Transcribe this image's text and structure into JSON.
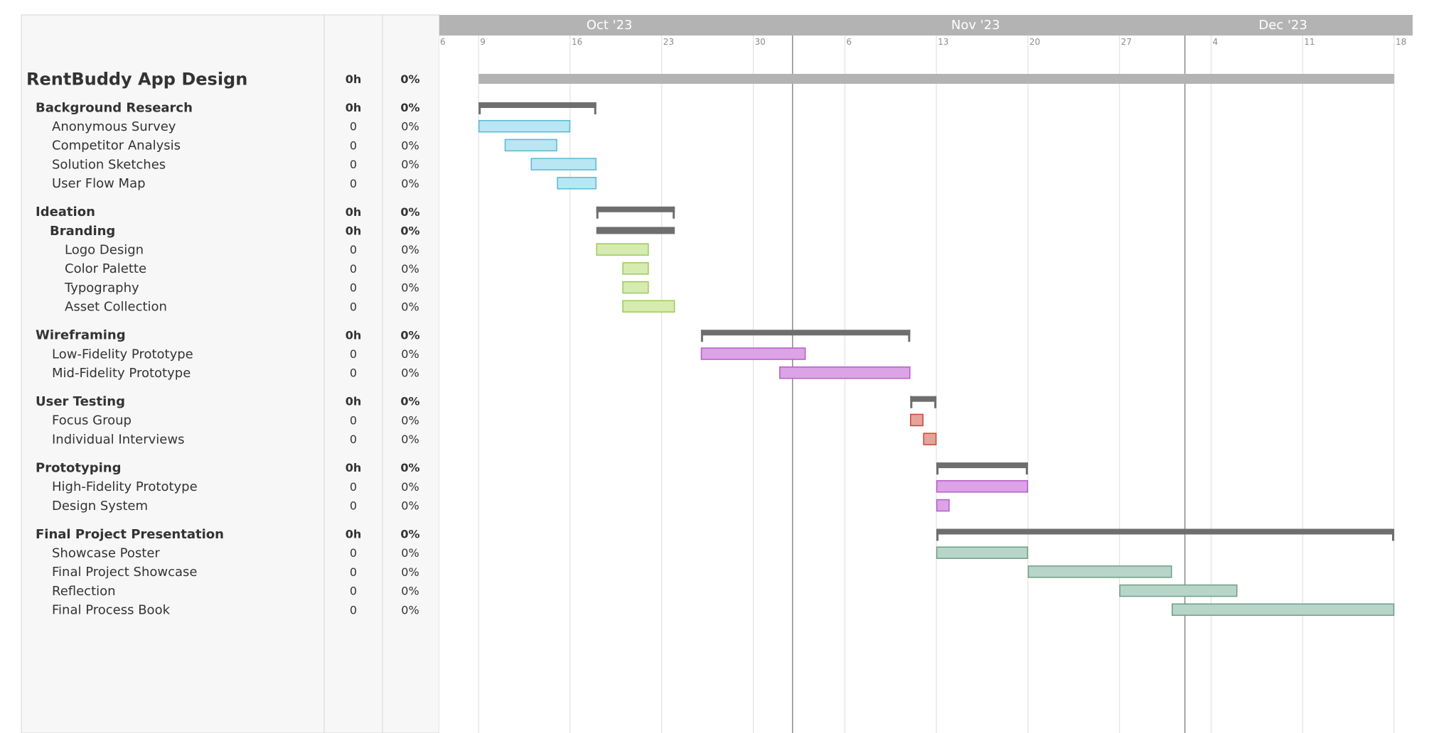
{
  "app": {
    "title": "RentBuddy App Design"
  },
  "chart_data": {
    "type": "gantt",
    "months": [
      "Oct '23",
      "Nov '23",
      "Dec '23"
    ],
    "week_ticks": [
      "6",
      "9",
      "16",
      "23",
      "30",
      "6",
      "13",
      "20",
      "27",
      "4",
      "11",
      "18"
    ],
    "timeline": {
      "start": "2023-10-06",
      "end": "2023-12-18"
    },
    "today_markers": [
      "2023-11-02",
      "2023-12-02"
    ],
    "rows": [
      {
        "name": "RentBuddy App Design",
        "hours": "0h",
        "percent": "0%",
        "kind": "project",
        "level": 0,
        "start": "2023-10-09",
        "end": "2023-12-18"
      },
      {
        "name": "Background Research",
        "hours": "0h",
        "percent": "0%",
        "kind": "group",
        "level": 1,
        "start": "2023-10-09",
        "end": "2023-10-18"
      },
      {
        "name": "Anonymous Survey",
        "hours": "0",
        "percent": "0%",
        "kind": "task",
        "level": 2,
        "start": "2023-10-09",
        "end": "2023-10-16",
        "color": "#b9e6f3",
        "stroke": "#5bb7d4"
      },
      {
        "name": "Competitor Analysis",
        "hours": "0",
        "percent": "0%",
        "kind": "task",
        "level": 2,
        "start": "2023-10-11",
        "end": "2023-10-15",
        "color": "#b9e6f3",
        "stroke": "#5bb7d4"
      },
      {
        "name": "Solution Sketches",
        "hours": "0",
        "percent": "0%",
        "kind": "task",
        "level": 2,
        "start": "2023-10-13",
        "end": "2023-10-18",
        "color": "#b9e6f3",
        "stroke": "#5bb7d4"
      },
      {
        "name": "User Flow Map",
        "hours": "0",
        "percent": "0%",
        "kind": "task",
        "level": 2,
        "start": "2023-10-15",
        "end": "2023-10-18",
        "color": "#b9e6f3",
        "stroke": "#5bb7d4"
      },
      {
        "name": "Ideation",
        "hours": "0h",
        "percent": "0%",
        "kind": "group",
        "level": 1,
        "start": "2023-10-18",
        "end": "2023-10-24"
      },
      {
        "name": "Branding",
        "hours": "0h",
        "percent": "0%",
        "kind": "subgroup",
        "level": 2,
        "start": "2023-10-18",
        "end": "2023-10-24"
      },
      {
        "name": "Logo Design",
        "hours": "0",
        "percent": "0%",
        "kind": "task",
        "level": 3,
        "start": "2023-10-18",
        "end": "2023-10-22",
        "color": "#d6ebb0",
        "stroke": "#9cc95c"
      },
      {
        "name": "Color Palette",
        "hours": "0",
        "percent": "0%",
        "kind": "task",
        "level": 3,
        "start": "2023-10-20",
        "end": "2023-10-22",
        "color": "#d6ebb0",
        "stroke": "#9cc95c"
      },
      {
        "name": "Typography",
        "hours": "0",
        "percent": "0%",
        "kind": "task",
        "level": 3,
        "start": "2023-10-20",
        "end": "2023-10-22",
        "color": "#d6ebb0",
        "stroke": "#9cc95c"
      },
      {
        "name": "Asset Collection",
        "hours": "0",
        "percent": "0%",
        "kind": "task",
        "level": 3,
        "start": "2023-10-20",
        "end": "2023-10-24",
        "color": "#d6ebb0",
        "stroke": "#9cc95c"
      },
      {
        "name": "Wireframing",
        "hours": "0h",
        "percent": "0%",
        "kind": "group",
        "level": 1,
        "start": "2023-10-26",
        "end": "2023-11-11"
      },
      {
        "name": "Low-Fidelity Prototype",
        "hours": "0",
        "percent": "0%",
        "kind": "task",
        "level": 2,
        "start": "2023-10-26",
        "end": "2023-11-03",
        "color": "#dca3e6",
        "stroke": "#b45cc7"
      },
      {
        "name": "Mid-Fidelity Prototype",
        "hours": "0",
        "percent": "0%",
        "kind": "task",
        "level": 2,
        "start": "2023-11-01",
        "end": "2023-11-11",
        "color": "#dca3e6",
        "stroke": "#b45cc7"
      },
      {
        "name": "User Testing",
        "hours": "0h",
        "percent": "0%",
        "kind": "group",
        "level": 1,
        "start": "2023-11-11",
        "end": "2023-11-13"
      },
      {
        "name": "Focus Group",
        "hours": "0",
        "percent": "0%",
        "kind": "task",
        "level": 2,
        "start": "2023-11-11",
        "end": "2023-11-12",
        "color": "#e4a49a",
        "stroke": "#c9453a"
      },
      {
        "name": "Individual Interviews",
        "hours": "0",
        "percent": "0%",
        "kind": "task",
        "level": 2,
        "start": "2023-11-12",
        "end": "2023-11-13",
        "color": "#e4a49a",
        "stroke": "#c9453a"
      },
      {
        "name": "Prototyping",
        "hours": "0h",
        "percent": "0%",
        "kind": "group",
        "level": 1,
        "start": "2023-11-13",
        "end": "2023-11-20"
      },
      {
        "name": "High-Fidelity Prototype",
        "hours": "0",
        "percent": "0%",
        "kind": "task",
        "level": 2,
        "start": "2023-11-13",
        "end": "2023-11-20",
        "color": "#dca3e6",
        "stroke": "#b45cc7"
      },
      {
        "name": "Design System",
        "hours": "0",
        "percent": "0%",
        "kind": "task",
        "level": 2,
        "start": "2023-11-13",
        "end": "2023-11-14",
        "color": "#dca3e6",
        "stroke": "#b45cc7"
      },
      {
        "name": "Final Project Presentation",
        "hours": "0h",
        "percent": "0%",
        "kind": "group",
        "level": 1,
        "start": "2023-11-13",
        "end": "2023-12-18"
      },
      {
        "name": "Showcase Poster",
        "hours": "0",
        "percent": "0%",
        "kind": "task",
        "level": 2,
        "start": "2023-11-13",
        "end": "2023-11-20",
        "color": "#b7d5c8",
        "stroke": "#6e9e87"
      },
      {
        "name": "Final Project Showcase",
        "hours": "0",
        "percent": "0%",
        "kind": "task",
        "level": 2,
        "start": "2023-11-20",
        "end": "2023-12-01",
        "color": "#b7d5c8",
        "stroke": "#6e9e87"
      },
      {
        "name": "Reflection",
        "hours": "0",
        "percent": "0%",
        "kind": "task",
        "level": 2,
        "start": "2023-11-27",
        "end": "2023-12-06",
        "color": "#b7d5c8",
        "stroke": "#6e9e87"
      },
      {
        "name": "Final Process Book",
        "hours": "0",
        "percent": "0%",
        "kind": "task",
        "level": 2,
        "start": "2023-12-01",
        "end": "2023-12-18",
        "color": "#b7d5c8",
        "stroke": "#6e9e87"
      }
    ]
  },
  "colors": {
    "header_bar": "#b3b3b3",
    "summary_bar": "#6e6e6e",
    "project_bar": "#b3b3b3",
    "grid": "#dcdcdc",
    "today_line": "#8a8a8a",
    "left_panel": "#f7f7f7"
  }
}
